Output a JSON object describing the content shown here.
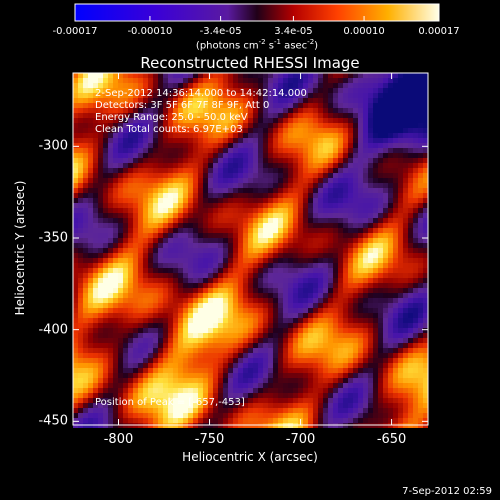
{
  "colorbar": {
    "tick_labels": [
      "-0.00017",
      "-0.00010",
      "-3.4e-05",
      "3.4e-05",
      "0.00010",
      "0.00017"
    ],
    "units_text": "(photons cm",
    "units_sup1": "-2",
    "units_mid": " s",
    "units_sup2": "-1",
    "units_end": " asec",
    "units_sup3": "-2",
    "units_close": ")"
  },
  "chart_data": {
    "type": "heatmap",
    "title": "Reconstructed RHESSI Image",
    "xlabel": "Heliocentric X (arcsec)",
    "ylabel": "Heliocentric Y (arcsec)",
    "xlim": [
      -825,
      -630
    ],
    "ylim": [
      -452,
      -260
    ],
    "x_ticks": [
      "-800",
      "-750",
      "-700",
      "-650"
    ],
    "y_ticks": [
      "-300",
      "-350",
      "-400",
      "-450"
    ],
    "x_tick_values": [
      -800,
      -750,
      -700,
      -650
    ],
    "y_tick_values": [
      -300,
      -350,
      -400,
      -450
    ],
    "colorbar_range": [
      -0.00017,
      0.00017
    ],
    "colormap": "blue-purple-red-yellow-white",
    "peak_position": [
      -657,
      -453
    ],
    "annotations": [
      "2-Sep-2012 14:36:14.000 to 14:42:14.000",
      "Detectors: 3F 5F 6F 7F 8F 9F, Att 0",
      "Energy Range: 25.0 - 50.0 keV",
      "Clean    Total counts: 6.97E+03"
    ],
    "peak_text": "Position of Peak = [-657,-453]"
  },
  "footer": {
    "date": "7-Sep-2012 02:59"
  }
}
